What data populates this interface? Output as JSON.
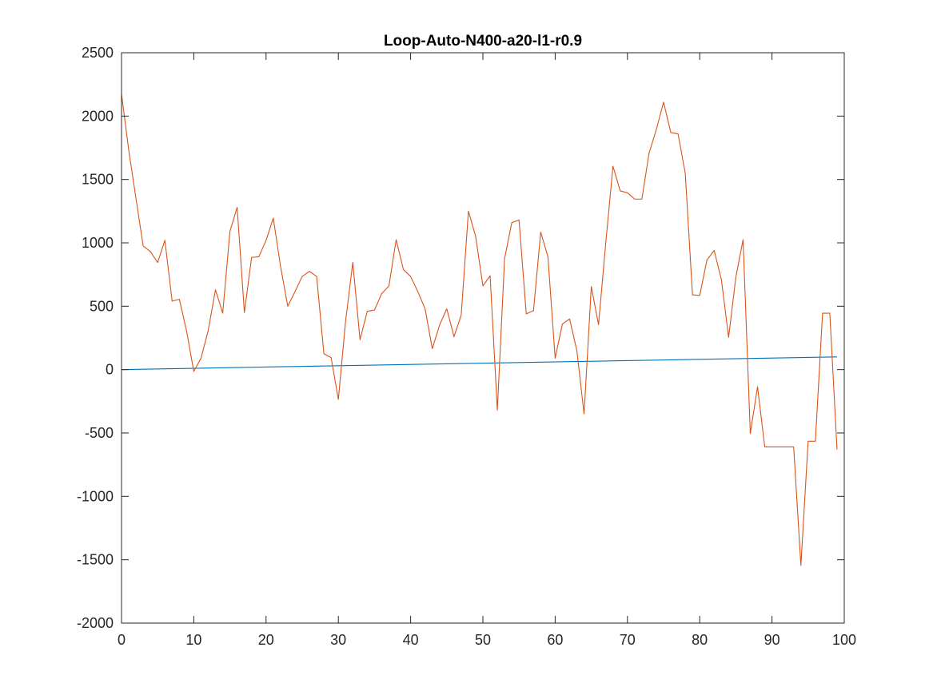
{
  "chart_data": {
    "type": "line",
    "title": "Loop-Auto-N400-a20-l1-r0.9",
    "xlabel": "",
    "ylabel": "",
    "xlim": [
      0,
      100
    ],
    "ylim": [
      -2000,
      2500
    ],
    "xticks": [
      0,
      10,
      20,
      30,
      40,
      50,
      60,
      70,
      80,
      90,
      100
    ],
    "yticks": [
      -2000,
      -1500,
      -1000,
      -500,
      0,
      500,
      1000,
      1500,
      2000,
      2500
    ],
    "grid": false,
    "legend": "none",
    "series": [
      {
        "color": "#0072BD",
        "x": [
          0,
          99
        ],
        "y": [
          0,
          100
        ]
      },
      {
        "color": "#D95319",
        "x": [
          0,
          1,
          2,
          3,
          4,
          5,
          6,
          7,
          8,
          9,
          10,
          11,
          12,
          13,
          14,
          15,
          16,
          17,
          18,
          19,
          20,
          21,
          22,
          23,
          24,
          25,
          26,
          27,
          28,
          29,
          30,
          31,
          32,
          33,
          34,
          35,
          36,
          37,
          38,
          39,
          40,
          41,
          42,
          43,
          44,
          45,
          46,
          47,
          48,
          49,
          50,
          51,
          52,
          53,
          54,
          55,
          56,
          57,
          58,
          59,
          60,
          61,
          62,
          63,
          64,
          65,
          66,
          67,
          68,
          69,
          70,
          71,
          72,
          73,
          74,
          75,
          76,
          77,
          78,
          79,
          80,
          81,
          82,
          83,
          84,
          85,
          86,
          87,
          88,
          89,
          90,
          91,
          92,
          93,
          94,
          95,
          96,
          97,
          98,
          99
        ],
        "y": [
          2175,
          1730,
          1350,
          975,
          930,
          845,
          1020,
          540,
          555,
          305,
          -15,
          90,
          310,
          630,
          445,
          1090,
          1280,
          450,
          885,
          890,
          1020,
          1195,
          815,
          500,
          615,
          735,
          775,
          735,
          125,
          95,
          -235,
          380,
          845,
          235,
          460,
          470,
          600,
          660,
          1025,
          790,
          735,
          615,
          480,
          165,
          350,
          480,
          260,
          430,
          1250,
          1050,
          660,
          740,
          -320,
          875,
          1160,
          1180,
          440,
          465,
          1085,
          890,
          90,
          360,
          400,
          150,
          -350,
          655,
          355,
          1000,
          1605,
          1410,
          1395,
          1345,
          1345,
          1710,
          1895,
          2110,
          1870,
          1860,
          1550,
          590,
          585,
          865,
          940,
          710,
          255,
          730,
          1025,
          -505,
          -135,
          -610,
          -610,
          -610,
          -610,
          -610,
          -1545,
          -565,
          -565,
          445,
          445,
          -630
        ]
      }
    ]
  }
}
